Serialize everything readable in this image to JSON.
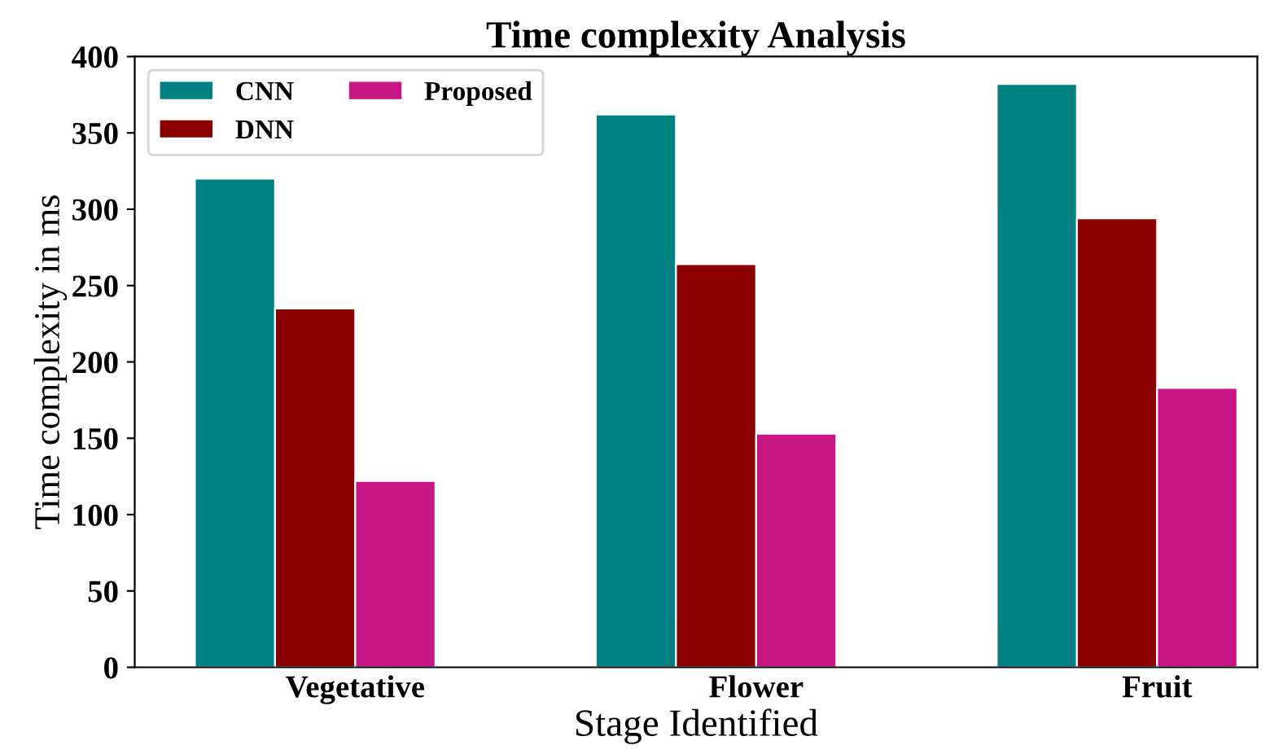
{
  "chart_data": {
    "type": "bar",
    "title": "Time complexity Analysis",
    "xlabel": "Stage Identified",
    "ylabel": "Time complexity in ms",
    "categories": [
      "Vegetative",
      "Flower",
      "Fruit"
    ],
    "series": [
      {
        "name": "CNN",
        "color": "#008080",
        "values": [
          320,
          362,
          382
        ]
      },
      {
        "name": "DNN",
        "color": "#8b0000",
        "values": [
          235,
          264,
          294
        ]
      },
      {
        "name": "Proposed",
        "color": "#c71585",
        "values": [
          122,
          153,
          183
        ]
      }
    ],
    "ylim": [
      0,
      400
    ],
    "yticks": [
      0,
      50,
      100,
      150,
      200,
      250,
      300,
      350,
      400
    ],
    "grid": false,
    "legend": "top left"
  }
}
